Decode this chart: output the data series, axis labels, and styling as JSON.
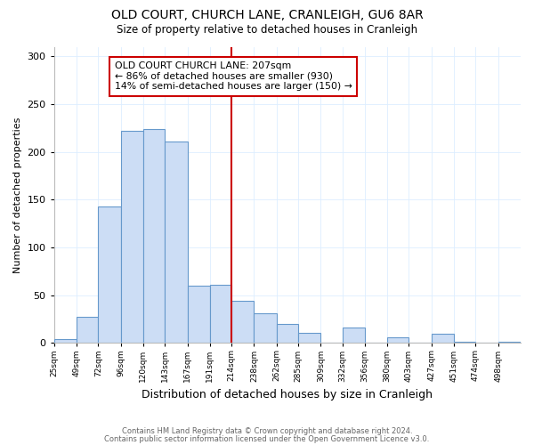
{
  "title": "OLD COURT, CHURCH LANE, CRANLEIGH, GU6 8AR",
  "subtitle": "Size of property relative to detached houses in Cranleigh",
  "xlabel": "Distribution of detached houses by size in Cranleigh",
  "ylabel": "Number of detached properties",
  "footer_line1": "Contains HM Land Registry data © Crown copyright and database right 2024.",
  "footer_line2": "Contains public sector information licensed under the Open Government Licence v3.0.",
  "bin_labels": [
    "25sqm",
    "49sqm",
    "72sqm",
    "96sqm",
    "120sqm",
    "143sqm",
    "167sqm",
    "191sqm",
    "214sqm",
    "238sqm",
    "262sqm",
    "285sqm",
    "309sqm",
    "332sqm",
    "356sqm",
    "380sqm",
    "403sqm",
    "427sqm",
    "451sqm",
    "474sqm",
    "498sqm"
  ],
  "bar_heights": [
    4,
    27,
    143,
    222,
    224,
    211,
    60,
    61,
    44,
    31,
    20,
    11,
    0,
    16,
    0,
    6,
    0,
    10,
    1,
    0,
    1
  ],
  "bar_color": "#ccddf5",
  "bar_edge_color": "#6699cc",
  "vline_x_idx": 8,
  "vline_color": "#cc0000",
  "annotation_title": "OLD COURT CHURCH LANE: 207sqm",
  "annotation_line1": "← 86% of detached houses are smaller (930)",
  "annotation_line2": "14% of semi-detached houses are larger (150) →",
  "annotation_box_edge_color": "#cc0000",
  "ylim": [
    0,
    310
  ],
  "yticks": [
    0,
    50,
    100,
    150,
    200,
    250,
    300
  ],
  "bin_edges": [
    25,
    49,
    72,
    96,
    120,
    143,
    167,
    191,
    214,
    238,
    262,
    285,
    309,
    332,
    356,
    380,
    403,
    427,
    451,
    474,
    498,
    522
  ]
}
